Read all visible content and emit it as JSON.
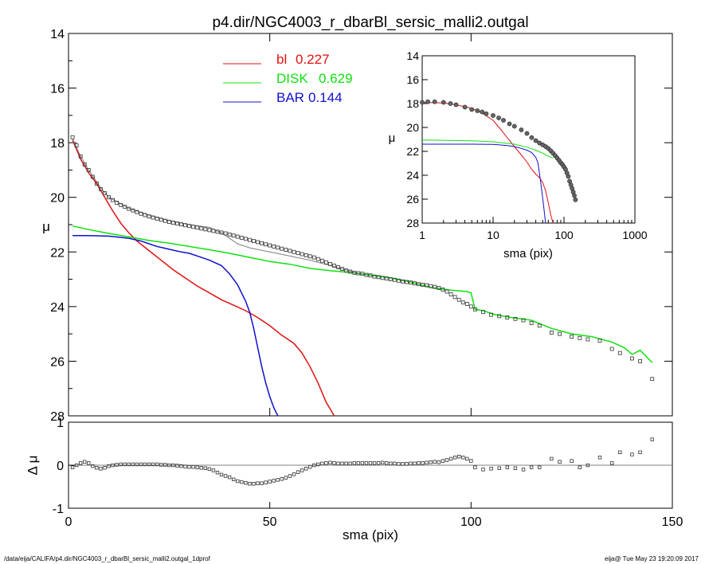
{
  "title": "p4.dir/NGC4003_r_dbarBl_sersic_malli2.outgal",
  "footer": {
    "path": "/data/eija/CALIFA/p4.dir/NGC4003_r_dbarBl_sersic_malli2.outgal_1dprof",
    "stamp": "eija@  Tue May 23 19:20:09 2017"
  },
  "colors": {
    "bl": "#e01010",
    "disk": "#10e010",
    "bar": "#1010d0",
    "total": "#808080",
    "data": "#333333"
  },
  "chart_data": [
    {
      "id": "main",
      "type": "scatter",
      "xlabel": "",
      "ylabel": "μ",
      "xlim": [
        0,
        150
      ],
      "ylim": [
        28,
        14
      ],
      "yticks": [
        "14",
        "16",
        "18",
        "20",
        "22",
        "24",
        "26",
        "28"
      ],
      "yticks_values": [
        14,
        16,
        18,
        20,
        22,
        24,
        26,
        28
      ],
      "legend": [
        {
          "label": "bl",
          "value": "0.227",
          "color": "#e01010"
        },
        {
          "label": "DISK",
          "value": "0.629",
          "color": "#10e010"
        },
        {
          "label": "BAR",
          "value": "0.144",
          "color": "#1010d0"
        }
      ],
      "legend_placement": "top-center",
      "observed_points": {
        "x": [
          1,
          2,
          3,
          4,
          5,
          6,
          7,
          8,
          9,
          10,
          11,
          12,
          13,
          14,
          15,
          16,
          17,
          18,
          19,
          20,
          21,
          22,
          23,
          24,
          25,
          26,
          27,
          28,
          29,
          30,
          31,
          32,
          33,
          34,
          35,
          36,
          37,
          38,
          39,
          40,
          41,
          42,
          43,
          44,
          45,
          46,
          47,
          48,
          49,
          50,
          51,
          52,
          53,
          54,
          55,
          56,
          57,
          58,
          59,
          60,
          61,
          62,
          63,
          64,
          65,
          66,
          67,
          68,
          69,
          70,
          71,
          72,
          73,
          74,
          75,
          76,
          77,
          78,
          79,
          80,
          81,
          82,
          83,
          84,
          85,
          86,
          87,
          88,
          89,
          90,
          91,
          92,
          93,
          94,
          95,
          96,
          97,
          98,
          99,
          100,
          101,
          103,
          105,
          107,
          109,
          111,
          113,
          115,
          117,
          120,
          122,
          125,
          127,
          129,
          132,
          135,
          137,
          140,
          142,
          145
        ],
        "y": [
          17.8,
          18.1,
          18.5,
          18.8,
          19.0,
          19.25,
          19.5,
          19.7,
          19.85,
          20.0,
          20.1,
          20.2,
          20.28,
          20.35,
          20.42,
          20.48,
          20.54,
          20.6,
          20.65,
          20.7,
          20.74,
          20.78,
          20.82,
          20.86,
          20.9,
          20.93,
          20.96,
          20.99,
          21.02,
          21.05,
          21.08,
          21.11,
          21.14,
          21.17,
          21.2,
          21.23,
          21.26,
          21.29,
          21.32,
          21.36,
          21.4,
          21.44,
          21.48,
          21.52,
          21.56,
          21.6,
          21.64,
          21.68,
          21.72,
          21.76,
          21.8,
          21.84,
          21.88,
          21.92,
          21.96,
          22.0,
          22.04,
          22.08,
          22.12,
          22.16,
          22.2,
          22.26,
          22.32,
          22.38,
          22.44,
          22.5,
          22.56,
          22.62,
          22.68,
          22.72,
          22.76,
          22.78,
          22.8,
          22.84,
          22.86,
          22.9,
          22.92,
          22.95,
          22.97,
          23.0,
          23.02,
          23.05,
          23.08,
          23.1,
          23.12,
          23.15,
          23.18,
          23.2,
          23.22,
          23.25,
          23.28,
          23.32,
          23.38,
          23.45,
          23.55,
          23.65,
          23.75,
          23.85,
          23.9,
          24.0,
          24.1,
          24.2,
          24.3,
          24.35,
          24.4,
          24.45,
          24.5,
          24.6,
          24.7,
          24.95,
          25.0,
          25.1,
          25.15,
          25.2,
          25.25,
          25.55,
          25.7,
          25.9,
          26.0,
          26.65
        ]
      },
      "total_model": {
        "x": [
          1,
          3,
          5,
          8,
          10,
          12,
          15,
          20,
          25,
          30,
          35,
          38,
          40,
          42,
          45,
          50,
          55,
          60,
          65,
          70,
          72
        ],
        "y": [
          17.85,
          18.5,
          19.0,
          19.65,
          20.0,
          20.15,
          20.4,
          20.65,
          20.85,
          21.0,
          21.1,
          21.3,
          21.5,
          21.7,
          21.85,
          22.0,
          22.15,
          22.3,
          22.5,
          22.7,
          22.8
        ]
      },
      "series": [
        {
          "name": "bl",
          "color": "#e01010",
          "x": [
            1,
            3,
            5,
            7,
            9,
            11,
            13,
            15,
            17,
            20,
            23,
            26,
            29,
            32,
            35,
            38,
            41,
            44,
            47,
            50,
            53,
            56,
            58,
            60,
            62,
            64,
            65,
            66
          ],
          "y": [
            17.9,
            18.6,
            19.1,
            19.5,
            20.0,
            20.5,
            20.95,
            21.3,
            21.6,
            21.95,
            22.3,
            22.65,
            22.95,
            23.25,
            23.5,
            23.75,
            23.95,
            24.15,
            24.4,
            24.7,
            25.05,
            25.35,
            25.7,
            26.2,
            26.8,
            27.5,
            27.75,
            28.0
          ]
        },
        {
          "name": "DISK",
          "color": "#10e010",
          "x": [
            1,
            5,
            10,
            15,
            20,
            25,
            30,
            35,
            40,
            45,
            50,
            55,
            60,
            63,
            66,
            70,
            75,
            80,
            85,
            90,
            95,
            99,
            100,
            101,
            103,
            106,
            110,
            115,
            120,
            125,
            130,
            135,
            138,
            140,
            142,
            145
          ],
          "y": [
            21.05,
            21.18,
            21.32,
            21.45,
            21.58,
            21.68,
            21.8,
            21.92,
            22.05,
            22.2,
            22.35,
            22.45,
            22.6,
            22.65,
            22.7,
            22.75,
            22.85,
            22.95,
            23.1,
            23.3,
            23.4,
            23.45,
            23.5,
            24.1,
            24.15,
            24.3,
            24.4,
            24.5,
            24.8,
            25.0,
            25.1,
            25.3,
            25.5,
            25.75,
            25.6,
            26.05
          ]
        },
        {
          "name": "BAR",
          "color": "#1010d0",
          "x": [
            1,
            5,
            10,
            15,
            18,
            20,
            22,
            25,
            28,
            30,
            33,
            35,
            38,
            40,
            42,
            44,
            45,
            46,
            47,
            48,
            49,
            50,
            51,
            52
          ],
          "y": [
            21.4,
            21.4,
            21.42,
            21.5,
            21.6,
            21.7,
            21.8,
            21.9,
            22.0,
            22.05,
            22.2,
            22.3,
            22.5,
            22.8,
            23.2,
            23.8,
            24.2,
            24.8,
            25.5,
            26.2,
            26.8,
            27.3,
            27.7,
            28.0
          ]
        }
      ]
    },
    {
      "id": "residual",
      "type": "scatter",
      "xlabel": "sma (pix)",
      "ylabel": "Δ μ",
      "xlim": [
        0,
        150
      ],
      "ylim": [
        -1,
        1
      ],
      "xticks": [
        "0",
        "50",
        "100",
        "150"
      ],
      "xticks_values": [
        0,
        50,
        100,
        150
      ],
      "yticks": [
        "-1",
        "0",
        "1"
      ],
      "yticks_values": [
        -1,
        0,
        1
      ],
      "points": {
        "x": [
          1,
          2,
          3,
          4,
          5,
          6,
          7,
          8,
          9,
          10,
          11,
          12,
          13,
          14,
          15,
          16,
          17,
          18,
          19,
          20,
          21,
          22,
          23,
          24,
          25,
          26,
          27,
          28,
          29,
          30,
          31,
          32,
          33,
          34,
          35,
          36,
          37,
          38,
          39,
          40,
          41,
          42,
          43,
          44,
          45,
          46,
          47,
          48,
          49,
          50,
          51,
          52,
          53,
          54,
          55,
          56,
          57,
          58,
          59,
          60,
          61,
          62,
          63,
          64,
          65,
          66,
          67,
          68,
          69,
          70,
          71,
          72,
          73,
          74,
          75,
          76,
          77,
          78,
          79,
          80,
          81,
          82,
          83,
          84,
          85,
          86,
          87,
          88,
          89,
          90,
          91,
          92,
          93,
          94,
          95,
          96,
          97,
          98,
          99,
          100,
          101,
          103,
          105,
          107,
          109,
          111,
          113,
          115,
          117,
          120,
          122,
          125,
          127,
          129,
          132,
          135,
          137,
          140,
          142,
          145
        ],
        "y": [
          -0.05,
          0.0,
          0.05,
          0.08,
          0.05,
          -0.02,
          -0.06,
          -0.08,
          -0.06,
          -0.02,
          0.0,
          0.01,
          0.02,
          0.02,
          0.02,
          0.02,
          0.02,
          0.02,
          0.02,
          0.02,
          0.02,
          0.02,
          0.01,
          0.01,
          0.0,
          0.0,
          -0.01,
          -0.02,
          -0.03,
          -0.04,
          -0.04,
          -0.05,
          -0.06,
          -0.07,
          -0.09,
          -0.12,
          -0.17,
          -0.22,
          -0.25,
          -0.28,
          -0.33,
          -0.37,
          -0.39,
          -0.41,
          -0.43,
          -0.43,
          -0.42,
          -0.42,
          -0.4,
          -0.38,
          -0.36,
          -0.34,
          -0.32,
          -0.29,
          -0.25,
          -0.21,
          -0.16,
          -0.12,
          -0.08,
          -0.04,
          0.0,
          0.02,
          0.04,
          0.05,
          0.06,
          0.05,
          0.04,
          0.04,
          0.04,
          0.04,
          0.05,
          0.05,
          0.05,
          0.05,
          0.05,
          0.05,
          0.05,
          0.06,
          0.05,
          0.04,
          0.04,
          0.03,
          0.03,
          0.03,
          0.04,
          0.04,
          0.05,
          0.05,
          0.06,
          0.07,
          0.08,
          0.07,
          0.1,
          0.12,
          0.15,
          0.18,
          0.2,
          0.18,
          0.15,
          0.1,
          -0.05,
          -0.1,
          -0.08,
          -0.07,
          -0.05,
          -0.07,
          -0.1,
          -0.05,
          -0.05,
          0.15,
          0.08,
          0.1,
          -0.05,
          0.0,
          0.18,
          0.05,
          0.3,
          0.25,
          0.3,
          0.6
        ]
      }
    },
    {
      "id": "inset",
      "type": "scatter",
      "xlabel": "sma (pix)",
      "ylabel": "μ",
      "xscale": "log",
      "xlim": [
        1,
        1000
      ],
      "ylim": [
        28,
        14
      ],
      "xticks": [
        "1",
        "10",
        "100",
        "1000"
      ],
      "xticks_values": [
        1,
        10,
        100,
        1000
      ],
      "yticks": [
        "14",
        "16",
        "18",
        "20",
        "22",
        "24",
        "26",
        "28"
      ],
      "yticks_values": [
        14,
        16,
        18,
        20,
        22,
        24,
        26,
        28
      ],
      "observed_points": {
        "x": [
          1,
          1.2,
          1.5,
          2,
          2.5,
          3,
          4,
          5,
          6,
          7,
          8,
          10,
          12,
          14,
          17,
          20,
          25,
          30,
          35,
          40,
          45,
          50,
          55,
          60,
          65,
          70,
          75,
          80,
          85,
          90,
          95,
          100,
          105,
          110,
          115,
          120,
          125,
          130,
          135,
          140,
          145
        ],
        "y": [
          17.9,
          17.85,
          17.85,
          17.9,
          18.0,
          18.1,
          18.3,
          18.5,
          18.6,
          18.7,
          18.85,
          19.0,
          19.2,
          19.4,
          19.7,
          19.9,
          20.2,
          20.5,
          20.85,
          21.1,
          21.3,
          21.45,
          21.6,
          21.75,
          21.95,
          22.15,
          22.35,
          22.55,
          22.75,
          22.95,
          23.1,
          23.3,
          23.5,
          23.8,
          24.1,
          24.5,
          24.8,
          25.1,
          25.4,
          25.7,
          26.05
        ]
      },
      "series": [
        {
          "name": "bl",
          "color": "#e01010",
          "x": [
            1,
            2,
            3,
            5,
            7,
            10,
            13,
            16,
            20,
            25,
            30,
            35,
            40,
            45,
            50,
            55,
            60,
            65,
            70
          ],
          "y": [
            17.9,
            17.95,
            18.1,
            18.4,
            18.8,
            19.4,
            20.2,
            20.9,
            21.6,
            22.3,
            22.9,
            23.5,
            23.9,
            24.2,
            24.6,
            25.3,
            26.3,
            27.3,
            28.0
          ]
        },
        {
          "name": "DISK",
          "color": "#10e010",
          "x": [
            1,
            2,
            5,
            10,
            20,
            30,
            40,
            50,
            60,
            70
          ],
          "y": [
            21.05,
            21.07,
            21.12,
            21.2,
            21.4,
            21.65,
            21.9,
            22.15,
            22.4,
            22.55
          ]
        },
        {
          "name": "BAR",
          "color": "#1010d0",
          "x": [
            1,
            2,
            5,
            10,
            15,
            20,
            25,
            30,
            35,
            40,
            43,
            45,
            47,
            49,
            51,
            53,
            55
          ],
          "y": [
            21.4,
            21.4,
            21.4,
            21.42,
            21.5,
            21.6,
            21.75,
            21.9,
            22.1,
            22.5,
            23.0,
            23.8,
            24.6,
            25.5,
            26.3,
            27.2,
            28.0
          ]
        }
      ]
    }
  ]
}
